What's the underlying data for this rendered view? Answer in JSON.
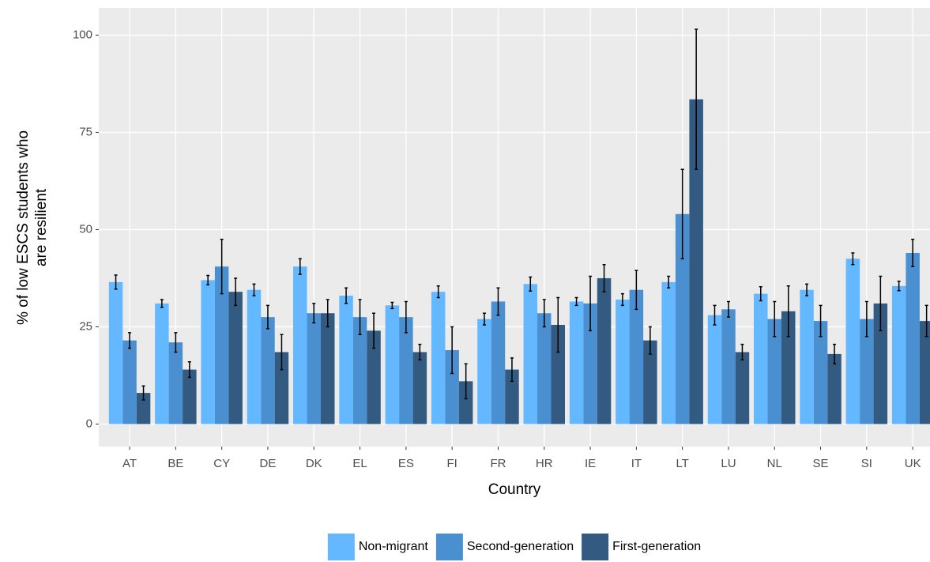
{
  "chart_data": {
    "type": "bar",
    "x_label": "Country",
    "y_label": [
      "% of low ESCS students who",
      "are resilient"
    ],
    "categories": [
      "AT",
      "BE",
      "CY",
      "DE",
      "DK",
      "EL",
      "ES",
      "FI",
      "FR",
      "HR",
      "IE",
      "IT",
      "LT",
      "LU",
      "NL",
      "SE",
      "SI",
      "UK"
    ],
    "series": [
      {
        "name": "Non-migrant",
        "color": "#63b8ff",
        "values": [
          36.5,
          31,
          37,
          34.5,
          40.5,
          33,
          30.5,
          34,
          27,
          36,
          31.5,
          32,
          36.5,
          28,
          33.5,
          34.5,
          42.5,
          35.5
        ],
        "errors": [
          1.8,
          1,
          1.2,
          1.5,
          2,
          2,
          0.8,
          1.5,
          1.5,
          1.8,
          1,
          1.5,
          1.5,
          2.5,
          1.8,
          1.5,
          1.5,
          1.2
        ]
      },
      {
        "name": "Second-generation",
        "color": "#4a8fcf",
        "values": [
          21.5,
          21,
          40.5,
          27.5,
          28.5,
          27.5,
          27.5,
          19,
          31.5,
          28.5,
          31,
          34.5,
          54,
          29.5,
          27,
          26.5,
          27,
          44
        ],
        "errors": [
          2,
          2.5,
          7,
          3,
          2.5,
          4.5,
          4,
          6,
          3.5,
          3.5,
          7,
          5,
          11.5,
          2,
          4.5,
          4,
          4.5,
          3.5
        ]
      },
      {
        "name": "First-generation",
        "color": "#335b82",
        "values": [
          8,
          14,
          34,
          18.5,
          28.5,
          24,
          18.5,
          11,
          14,
          25.5,
          37.5,
          21.5,
          83.5,
          18.5,
          29,
          18,
          31,
          26.5
        ],
        "errors": [
          1.8,
          2,
          3.5,
          4.5,
          3.5,
          4.5,
          2,
          4.5,
          3,
          7,
          3.5,
          3.5,
          18,
          2,
          6.5,
          2.5,
          7,
          4
        ]
      }
    ],
    "ylim": [
      -5.8,
      107
    ],
    "yticks": [
      0,
      25,
      50,
      75,
      100
    ],
    "grid": true,
    "legend": "bottom"
  }
}
